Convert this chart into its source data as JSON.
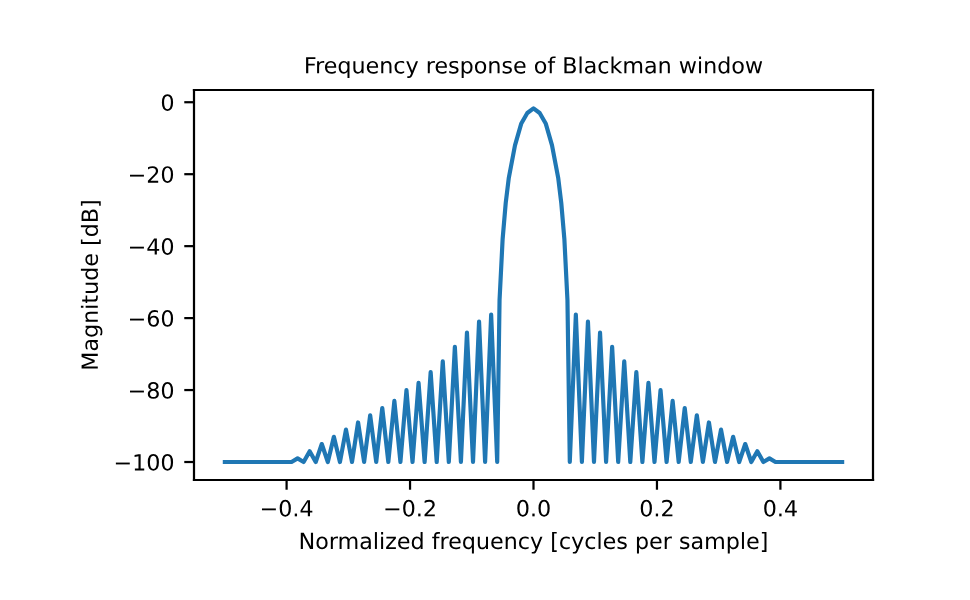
{
  "chart_data": {
    "type": "line",
    "title": "Frequency response of Blackman window",
    "xlabel": "Normalized frequency [cycles per sample]",
    "ylabel": "Magnitude [dB]",
    "series": [
      {
        "color": "#1f77b4",
        "x": [
          -0.5,
          -0.392,
          -0.3822,
          -0.3724,
          -0.3626,
          -0.3528,
          -0.343,
          -0.3332,
          -0.3234,
          -0.3136,
          -0.3038,
          -0.294,
          -0.2842,
          -0.2744,
          -0.2646,
          -0.2548,
          -0.245,
          -0.2352,
          -0.2254,
          -0.2156,
          -0.2058,
          -0.196,
          -0.1862,
          -0.1764,
          -0.1666,
          -0.1568,
          -0.147,
          -0.1372,
          -0.1274,
          -0.1176,
          -0.1078,
          -0.098,
          -0.0882,
          -0.0784,
          -0.0686,
          -0.0588,
          -0.055,
          -0.05,
          -0.045,
          -0.04,
          -0.03,
          -0.02,
          -0.01,
          0,
          0.01,
          0.02,
          0.03,
          0.04,
          0.045,
          0.05,
          0.055,
          0.0588,
          0.0686,
          0.0784,
          0.0882,
          0.098,
          0.1078,
          0.1176,
          0.1274,
          0.1372,
          0.147,
          0.1568,
          0.1666,
          0.1764,
          0.1862,
          0.196,
          0.2058,
          0.2156,
          0.2254,
          0.2352,
          0.245,
          0.2548,
          0.2646,
          0.2744,
          0.2842,
          0.294,
          0.3038,
          0.3136,
          0.3234,
          0.3332,
          0.343,
          0.3528,
          0.3626,
          0.3724,
          0.3822,
          0.392,
          0.5
        ],
        "values": [
          -100,
          -100,
          -99,
          -100,
          -97,
          -100,
          -95,
          -100,
          -93,
          -100,
          -91,
          -100,
          -89,
          -100,
          -87,
          -100,
          -85,
          -100,
          -83,
          -100,
          -80,
          -100,
          -78,
          -100,
          -75,
          -100,
          -72,
          -100,
          -68,
          -100,
          -64,
          -100,
          -61,
          -100,
          -59,
          -100,
          -55,
          -38,
          -28,
          -21,
          -12,
          -6,
          -3,
          -1.7,
          -3,
          -6,
          -12,
          -21,
          -28,
          -38,
          -55,
          -100,
          -59,
          -100,
          -61,
          -100,
          -64,
          -100,
          -68,
          -100,
          -72,
          -100,
          -75,
          -100,
          -78,
          -100,
          -80,
          -100,
          -83,
          -100,
          -85,
          -100,
          -87,
          -100,
          -89,
          -100,
          -91,
          -100,
          -93,
          -100,
          -95,
          -100,
          -97,
          -100,
          -99,
          -100,
          -100
        ]
      }
    ],
    "xlim": [
      -0.55,
      0.55
    ],
    "ylim": [
      -105,
      3.4
    ],
    "xticks": [
      {
        "value": -0.4,
        "label": "−0.4"
      },
      {
        "value": -0.2,
        "label": "−0.2"
      },
      {
        "value": 0.0,
        "label": "0.0"
      },
      {
        "value": 0.2,
        "label": "0.2"
      },
      {
        "value": 0.4,
        "label": "0.4"
      }
    ],
    "yticks": [
      {
        "value": -100,
        "label": "−100"
      },
      {
        "value": -80,
        "label": "−80"
      },
      {
        "value": -60,
        "label": "−60"
      },
      {
        "value": -40,
        "label": "−40"
      },
      {
        "value": -20,
        "label": "−20"
      },
      0
    ],
    "grid": false
  }
}
